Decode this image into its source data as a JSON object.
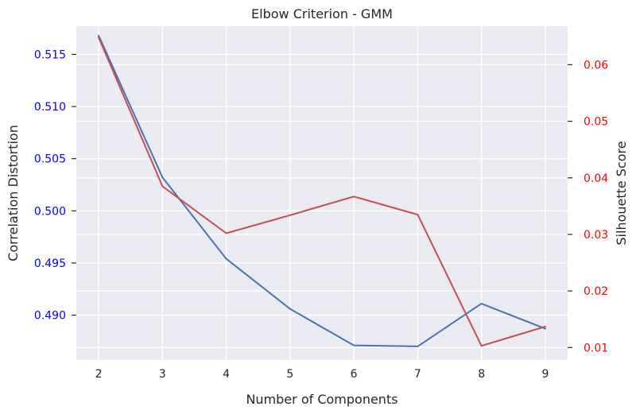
{
  "chart_data": {
    "type": "line",
    "title": "Elbow Criterion - GMM",
    "xlabel": "Number of Components",
    "x": [
      2,
      3,
      4,
      5,
      6,
      7,
      8,
      9
    ],
    "xlim": [
      1.65,
      9.35
    ],
    "grid": true,
    "left_axis": {
      "label": "Correlation Distortion",
      "color": "#0000ff",
      "ticks": [
        "0.490",
        "0.495",
        "0.500",
        "0.505",
        "0.510",
        "0.515"
      ],
      "tick_values": [
        0.49,
        0.495,
        0.5,
        0.505,
        0.51,
        0.515
      ],
      "ylim": [
        0.4857,
        0.5177
      ]
    },
    "right_axis": {
      "label": "Silhouette Score",
      "color": "#ff0000",
      "ticks": [
        "0.01",
        "0.02",
        "0.03",
        "0.04",
        "0.05",
        "0.06"
      ],
      "tick_values": [
        0.01,
        0.02,
        0.03,
        0.04,
        0.05,
        0.06
      ],
      "ylim": [
        0.0078,
        0.0668
      ]
    },
    "series": [
      {
        "axis": "left",
        "color": "#4c72b0",
        "values": [
          0.5168,
          0.5032,
          0.4954,
          0.4906,
          0.4871,
          0.487,
          0.4911,
          0.4887
        ]
      },
      {
        "axis": "right",
        "color": "#c44e52",
        "values": [
          0.0648,
          0.0385,
          0.0302,
          0.0334,
          0.0367,
          0.0335,
          0.0103,
          0.0137
        ]
      }
    ]
  },
  "colors": {
    "plot_background": "#eaeaf2",
    "grid": "#ffffff",
    "text": "#262626"
  }
}
